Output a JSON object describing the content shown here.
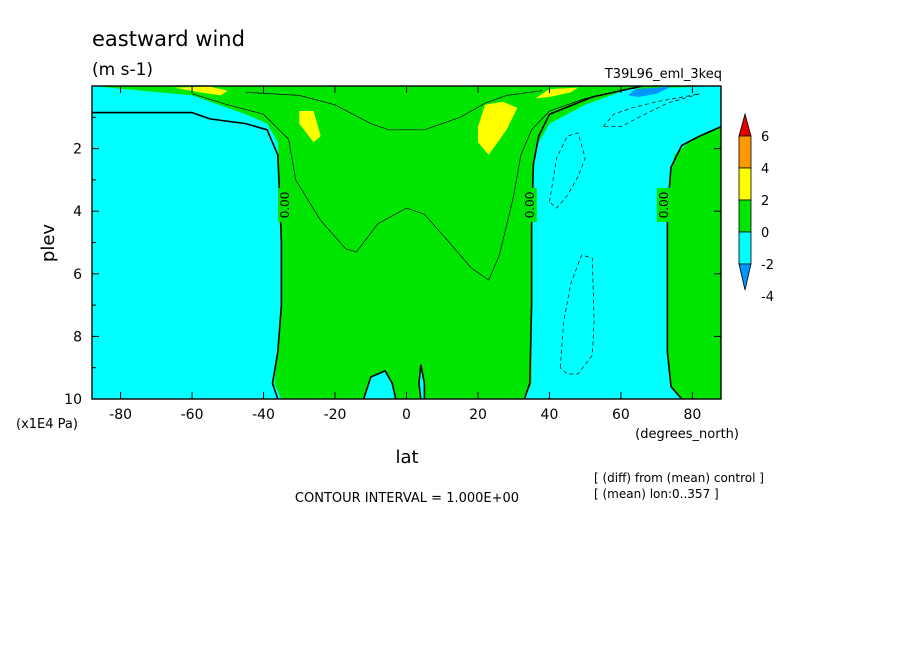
{
  "chart_data": {
    "type": "contour",
    "title": "eastward wind",
    "units": "(m s-1)",
    "run_label": "T39L96_eml_3keq",
    "xlabel": "lat",
    "x_units": "(degrees_north)",
    "ylabel": "plev",
    "y_units": "(x1E4 Pa)",
    "xlim": [
      -88,
      88
    ],
    "ylim": [
      10,
      0
    ],
    "x_ticks": [
      -80,
      -60,
      -40,
      -20,
      0,
      20,
      40,
      60,
      80
    ],
    "x_tick_labels": [
      "-80",
      "-60",
      "-40",
      "-20",
      "0",
      "20",
      "40",
      "60",
      "80"
    ],
    "y_ticks": [
      2,
      4,
      6,
      8,
      10
    ],
    "y_tick_labels": [
      "2",
      "4",
      "6",
      "8",
      "10"
    ],
    "contour_interval_text": "CONTOUR INTERVAL = 1.000E+00",
    "contour_interval": 1.0,
    "contour_label": "0.00",
    "notes": [
      "[ (diff) from (mean) control ]",
      "[ (mean) lon:0..357 ]"
    ],
    "colorbar": {
      "levels": [
        -4,
        -2,
        0,
        2,
        4,
        6
      ],
      "labels": [
        "6",
        "4",
        "2",
        "0",
        "-2",
        "-4"
      ],
      "colors": [
        "#e60000",
        "#ff9900",
        "#ffff00",
        "#00e600",
        "#00ffff",
        "#0096ff"
      ],
      "extend": "both"
    },
    "regions": [
      {
        "class": "0 to 2",
        "color": "#00e600",
        "polygon": [
          [
            -88,
            0
          ],
          [
            -60,
            0.3
          ],
          [
            -45,
            0.9
          ],
          [
            -39,
            1.2
          ],
          [
            -36,
            1.8
          ],
          [
            -35.5,
            3
          ],
          [
            -35,
            5
          ],
          [
            -35,
            7
          ],
          [
            -36,
            8.5
          ],
          [
            -37,
            9.5
          ],
          [
            -35,
            10
          ],
          [
            33,
            10
          ],
          [
            35,
            9.5
          ],
          [
            35,
            7
          ],
          [
            35,
            4
          ],
          [
            36,
            2
          ],
          [
            40,
            1.2
          ],
          [
            50,
            0.6
          ],
          [
            62,
            0.1
          ],
          [
            88,
            0
          ]
        ]
      },
      {
        "class": "-2 to 0",
        "color": "#00ffff",
        "polygon": [
          [
            -12,
            10
          ],
          [
            -10,
            9.3
          ],
          [
            -6,
            9.1
          ],
          [
            -4,
            9.5
          ],
          [
            -3,
            10
          ]
        ]
      },
      {
        "class": "-2 to 0",
        "color": "#00ffff",
        "polygon": [
          [
            4,
            10
          ],
          [
            3.5,
            9.5
          ],
          [
            4,
            8.9
          ],
          [
            5,
            9.5
          ],
          [
            5,
            10
          ]
        ]
      },
      {
        "class": "0 to 2",
        "color": "#00e600",
        "polygon": [
          [
            88,
            1.3
          ],
          [
            80,
            1.7
          ],
          [
            75,
            2.2
          ],
          [
            73,
            3.5
          ],
          [
            73,
            6
          ],
          [
            73,
            8.5
          ],
          [
            74,
            9.6
          ],
          [
            77,
            10
          ],
          [
            88,
            10
          ]
        ]
      },
      {
        "class": "2 to 4",
        "color": "#ffff00",
        "polygon": [
          [
            -30,
            0.8
          ],
          [
            -26,
            0.8
          ],
          [
            -24,
            1.6
          ],
          [
            -26,
            1.8
          ],
          [
            -30,
            1.2
          ]
        ]
      },
      {
        "class": "2 to 4",
        "color": "#ffff00",
        "polygon": [
          [
            20,
            1.3
          ],
          [
            22,
            0.6
          ],
          [
            27,
            0.5
          ],
          [
            31,
            0.7
          ],
          [
            28,
            1.4
          ],
          [
            23,
            2.2
          ],
          [
            20,
            1.8
          ]
        ]
      },
      {
        "class": "2 to 4",
        "color": "#ffff00",
        "polygon": [
          [
            -65,
            0.05
          ],
          [
            -55,
            0.02
          ],
          [
            -50,
            0.15
          ],
          [
            -52,
            0.3
          ],
          [
            -58,
            0.2
          ]
        ]
      },
      {
        "class": "2 to 4",
        "color": "#ffff00",
        "polygon": [
          [
            36,
            0.4
          ],
          [
            40,
            0.1
          ],
          [
            48,
            0.05
          ],
          [
            46,
            0.2
          ],
          [
            40,
            0.35
          ]
        ]
      },
      {
        "class": "-4 to -2",
        "color": "#0096ff",
        "polygon": [
          [
            62,
            0.3
          ],
          [
            64,
            0.1
          ],
          [
            70,
            0.05
          ],
          [
            74,
            0.02
          ],
          [
            70,
            0.25
          ],
          [
            65,
            0.35
          ]
        ]
      }
    ],
    "contour_lines": [
      {
        "value": 0,
        "style": "solid",
        "points": [
          [
            -88,
            0.85
          ],
          [
            -60,
            0.85
          ],
          [
            -55,
            1.05
          ],
          [
            -45,
            1.2
          ],
          [
            -39,
            1.4
          ],
          [
            -36,
            2.2
          ],
          [
            -35.5,
            3.5
          ],
          [
            -35,
            5
          ],
          [
            -35,
            7
          ],
          [
            -36,
            8.5
          ],
          [
            -37.5,
            9.5
          ],
          [
            -36,
            10
          ]
        ]
      },
      {
        "value": 0,
        "style": "solid",
        "points": [
          [
            33,
            10
          ],
          [
            34.5,
            9.5
          ],
          [
            35,
            7
          ],
          [
            35,
            4.5
          ],
          [
            35.5,
            2.5
          ],
          [
            37,
            1.6
          ],
          [
            40,
            0.9
          ],
          [
            52,
            0.35
          ],
          [
            62,
            0.1
          ],
          [
            66,
            0
          ]
        ]
      },
      {
        "value": 0,
        "style": "solid",
        "points": [
          [
            88,
            1.3
          ],
          [
            82,
            1.6
          ],
          [
            77,
            1.9
          ],
          [
            74,
            2.6
          ],
          [
            73,
            4
          ],
          [
            73,
            6
          ],
          [
            73,
            8.5
          ],
          [
            74,
            9.6
          ],
          [
            77,
            10
          ]
        ]
      },
      {
        "value": 0,
        "style": "solid",
        "points": [
          [
            -12,
            10
          ],
          [
            -10,
            9.3
          ],
          [
            -6,
            9.1
          ],
          [
            -4,
            9.5
          ],
          [
            -3,
            10
          ]
        ]
      },
      {
        "value": 0,
        "style": "solid",
        "points": [
          [
            4,
            10
          ],
          [
            3.5,
            9.5
          ],
          [
            4,
            8.9
          ],
          [
            5,
            9.5
          ],
          [
            5,
            10
          ]
        ]
      },
      {
        "value": 1,
        "style": "solid",
        "points": [
          [
            -60,
            0.25
          ],
          [
            -50,
            0.6
          ],
          [
            -40,
            0.9
          ],
          [
            -33,
            1.7
          ],
          [
            -31,
            3
          ],
          [
            -24,
            4.3
          ],
          [
            -17,
            5.2
          ],
          [
            -14,
            5.3
          ],
          [
            -8,
            4.4
          ],
          [
            0,
            3.9
          ],
          [
            5,
            4.1
          ],
          [
            12,
            5
          ],
          [
            18,
            5.8
          ],
          [
            23,
            6.2
          ],
          [
            26,
            5.4
          ],
          [
            30,
            3.5
          ],
          [
            32,
            2.2
          ],
          [
            35,
            1.4
          ],
          [
            40,
            0.8
          ],
          [
            50,
            0.4
          ],
          [
            60,
            0.15
          ]
        ]
      },
      {
        "value": 1,
        "style": "solid",
        "points": [
          [
            -45,
            0.2
          ],
          [
            -30,
            0.3
          ],
          [
            -20,
            0.6
          ],
          [
            -10,
            1.2
          ],
          [
            -5,
            1.4
          ],
          [
            5,
            1.4
          ],
          [
            15,
            1.0
          ],
          [
            22,
            0.55
          ],
          [
            28,
            0.3
          ],
          [
            38,
            0.15
          ]
        ]
      },
      {
        "value": -1,
        "style": "dashed",
        "points": [
          [
            40,
            3.7
          ],
          [
            42,
            2.3
          ],
          [
            45,
            1.6
          ],
          [
            48,
            1.5
          ],
          [
            50,
            2.3
          ],
          [
            48,
            2.9
          ],
          [
            45,
            3.5
          ],
          [
            42,
            3.9
          ],
          [
            40,
            3.7
          ]
        ]
      },
      {
        "value": -1,
        "style": "dashed",
        "points": [
          [
            43,
            9.0
          ],
          [
            44,
            7.5
          ],
          [
            46,
            6.3
          ],
          [
            49,
            5.4
          ],
          [
            52,
            5.5
          ],
          [
            52.5,
            7.5
          ],
          [
            52,
            8.6
          ],
          [
            48,
            9.2
          ],
          [
            45,
            9.2
          ],
          [
            43,
            9.0
          ]
        ]
      },
      {
        "value": -1,
        "style": "dashed",
        "points": [
          [
            55,
            1.3
          ],
          [
            58,
            0.9
          ],
          [
            63,
            0.7
          ],
          [
            70,
            0.5
          ],
          [
            75,
            0.4
          ],
          [
            82,
            0.25
          ],
          [
            73,
            0.55
          ],
          [
            65,
            1.0
          ],
          [
            60,
            1.3
          ],
          [
            55,
            1.3
          ]
        ]
      }
    ],
    "contour_label_positions": [
      [
        -34,
        3.8
      ],
      [
        34.5,
        3.8
      ],
      [
        72,
        3.8
      ]
    ]
  }
}
